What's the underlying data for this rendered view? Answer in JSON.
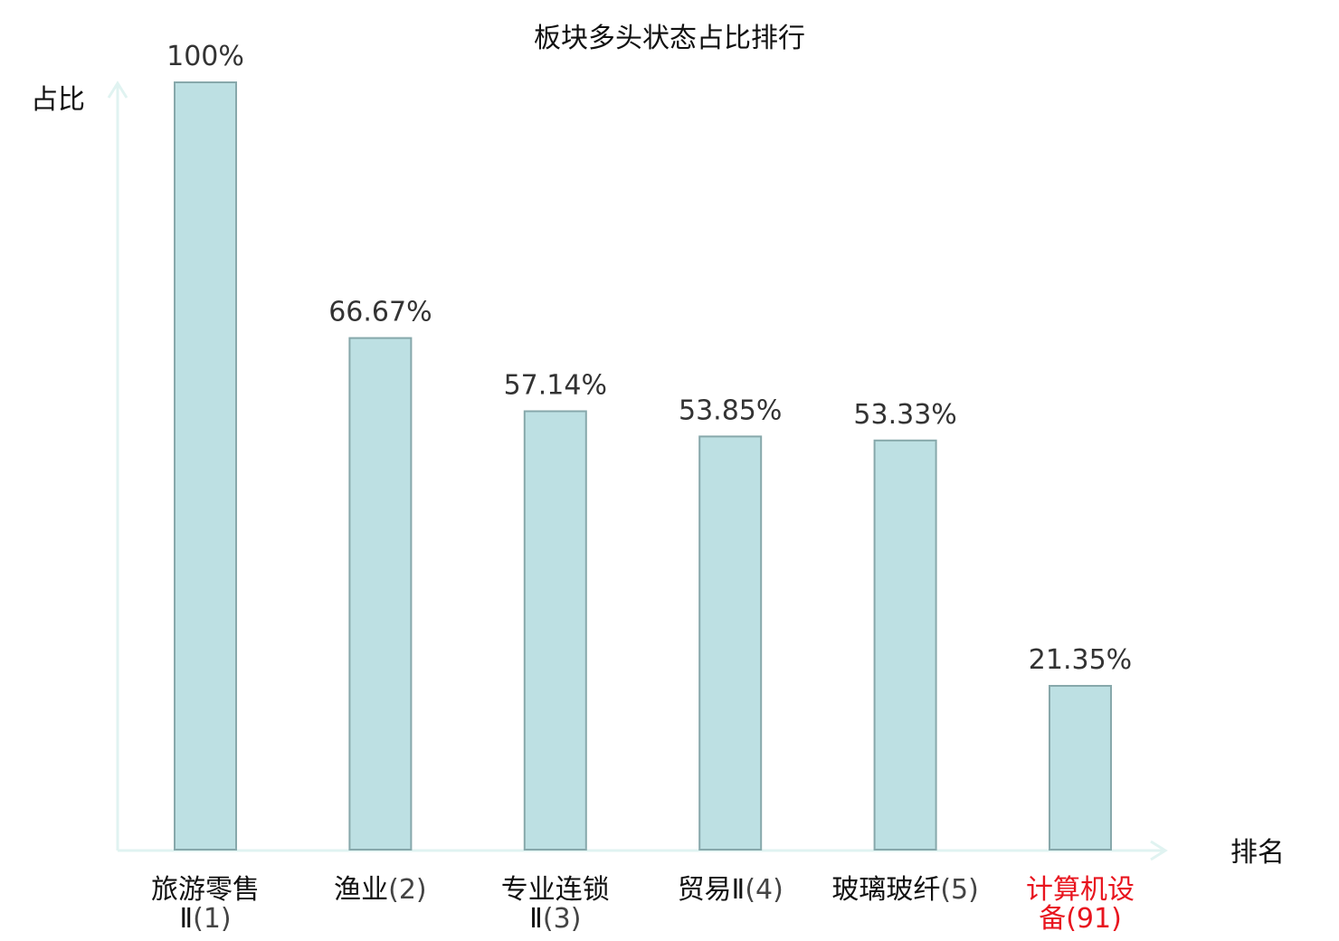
{
  "chart_data": {
    "type": "bar",
    "title": "板块多头状态占比排行",
    "ylabel": "占比",
    "xlabel": "排名",
    "ylim": [
      0,
      100
    ],
    "grid": false,
    "categories": [
      {
        "name": "旅游零售Ⅱ",
        "rank": "(1)",
        "highlight": false
      },
      {
        "name": "渔业",
        "rank": "(2)",
        "highlight": false
      },
      {
        "name": "专业连锁Ⅱ",
        "rank": "(3)",
        "highlight": false
      },
      {
        "name": "贸易Ⅱ",
        "rank": "(4)",
        "highlight": false
      },
      {
        "name": "玻璃玻纤",
        "rank": "(5)",
        "highlight": false
      },
      {
        "name": "计算机设备",
        "rank": "(91)",
        "highlight": true
      }
    ],
    "values": [
      100,
      66.67,
      57.14,
      53.85,
      53.33,
      21.35
    ],
    "value_labels": [
      "100%",
      "66.67%",
      "57.14%",
      "53.85%",
      "53.33%",
      "21.35%"
    ]
  },
  "colors": {
    "bar_fill": "#bde0e3",
    "bar_stroke": "#87a8ab",
    "axis": "#e0f3f1",
    "text": "#111111",
    "value_text": "#333333",
    "rank_text": "#444444",
    "highlight": "#e8141e"
  }
}
